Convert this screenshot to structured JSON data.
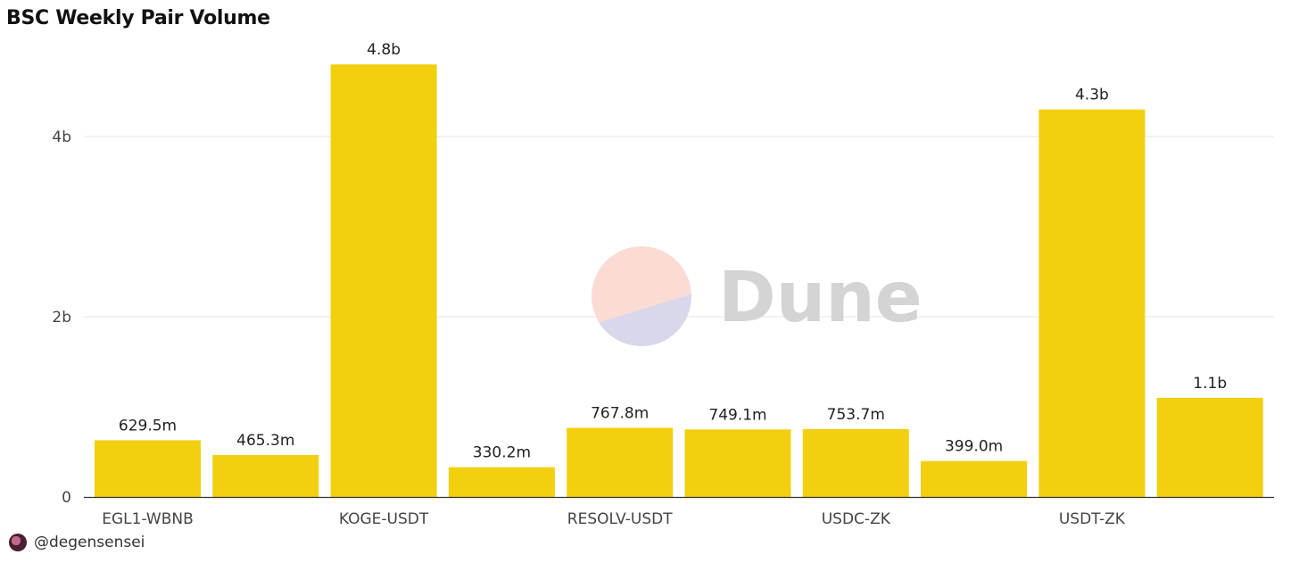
{
  "chart_data": {
    "type": "bar",
    "title": "BSC Weekly Pair Volume",
    "categories": [
      "EGL1-WBNB",
      "",
      "KOGE-USDT",
      "",
      "RESOLV-USDT",
      "",
      "USDC-ZK",
      "",
      "USDT-ZK",
      ""
    ],
    "values": [
      629.5,
      465.3,
      4800,
      330.2,
      767.8,
      749.1,
      753.7,
      399.0,
      4300,
      1100
    ],
    "value_unit": "millions",
    "data_labels": [
      "629.5m",
      "465.3m",
      "4.8b",
      "330.2m",
      "767.8m",
      "749.1m",
      "753.7m",
      "399.0m",
      "4.3b",
      "1.1b"
    ],
    "yticks": [
      {
        "value": 0,
        "label": "0"
      },
      {
        "value": 2000,
        "label": "2b"
      },
      {
        "value": 4000,
        "label": "4b"
      }
    ],
    "ylim": [
      0,
      5000
    ],
    "grid": true,
    "bar_color": "#f2d00f",
    "xlabel": "",
    "ylabel": ""
  },
  "watermark": {
    "text": "Dune",
    "colors": [
      "#fbdcd5",
      "#d9d7ea"
    ]
  },
  "footer": {
    "handle": "@degensensei"
  }
}
